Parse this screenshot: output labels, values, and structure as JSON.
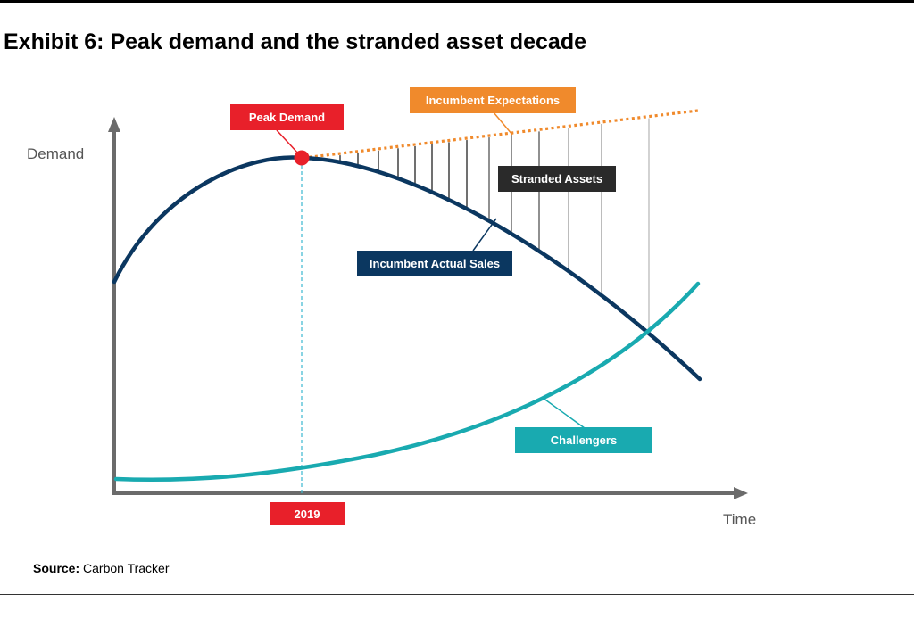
{
  "title": "Exhibit 6: Peak demand and the stranded asset decade",
  "axes": {
    "y_label": "Demand",
    "x_label": "Time"
  },
  "labels": {
    "peak_demand": "Peak Demand",
    "incumbent_expectations": "Incumbent Expectations",
    "stranded_assets": "Stranded Assets",
    "incumbent_actual_sales": "Incumbent Actual Sales",
    "challengers": "Challengers",
    "year": "2019"
  },
  "source": {
    "prefix": "Source:",
    "text": "Carbon Tracker"
  },
  "colors": {
    "red": "#e8202a",
    "orange": "#f08a2c",
    "navy": "#0b3760",
    "teal": "#19aab0",
    "dark_box": "#2a2a2a",
    "axis": "#6b6b6b",
    "dashed_marker": "#3bb8d0"
  }
}
